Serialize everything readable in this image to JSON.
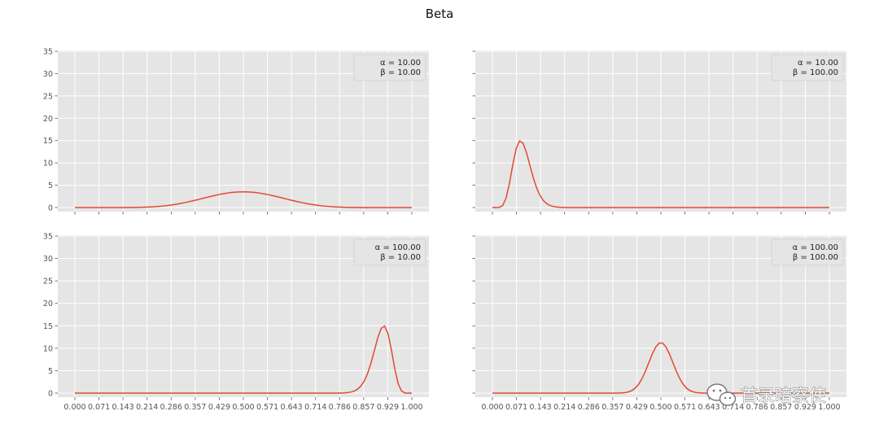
{
  "figure": {
    "title": "Beta"
  },
  "style": {
    "line_color": "#E24A33",
    "axes_bg": "#E5E5E5",
    "grid_color": "#FFFFFF",
    "tick_color": "#555555"
  },
  "x_ticks": [
    "0.000",
    "0.071",
    "0.143",
    "0.214",
    "0.286",
    "0.357",
    "0.429",
    "0.500",
    "0.571",
    "0.643",
    "0.714",
    "0.786",
    "0.857",
    "0.929",
    "1.000"
  ],
  "y_ticks": [
    "0",
    "5",
    "10",
    "15",
    "20",
    "25",
    "30",
    "35"
  ],
  "chart_data": [
    {
      "type": "line",
      "alpha_label": "α = 10.00",
      "beta_label": "β = 10.00",
      "alpha": 10,
      "beta": 10,
      "xlim": [
        0,
        1
      ],
      "ylim": [
        0,
        35
      ],
      "grid": true,
      "legend_placement": "top-right",
      "show_x_tick_labels": false,
      "show_y_tick_labels": true
    },
    {
      "type": "line",
      "alpha_label": "α = 10.00",
      "beta_label": "β = 100.00",
      "alpha": 10,
      "beta": 100,
      "xlim": [
        0,
        1
      ],
      "ylim": [
        0,
        35
      ],
      "grid": true,
      "legend_placement": "top-right",
      "show_x_tick_labels": false,
      "show_y_tick_labels": false
    },
    {
      "type": "line",
      "alpha_label": "α = 100.00",
      "beta_label": "β = 10.00",
      "alpha": 100,
      "beta": 10,
      "xlim": [
        0,
        1
      ],
      "ylim": [
        0,
        35
      ],
      "grid": true,
      "legend_placement": "top-right",
      "show_x_tick_labels": true,
      "show_y_tick_labels": true
    },
    {
      "type": "line",
      "alpha_label": "α = 100.00",
      "beta_label": "β = 100.00",
      "alpha": 100,
      "beta": 100,
      "xlim": [
        0,
        1
      ],
      "ylim": [
        0,
        35
      ],
      "grid": true,
      "legend_placement": "top-right",
      "show_x_tick_labels": true,
      "show_y_tick_labels": false
    }
  ],
  "watermark": {
    "text": "首录暗察使",
    "icon": "wechat-icon"
  }
}
